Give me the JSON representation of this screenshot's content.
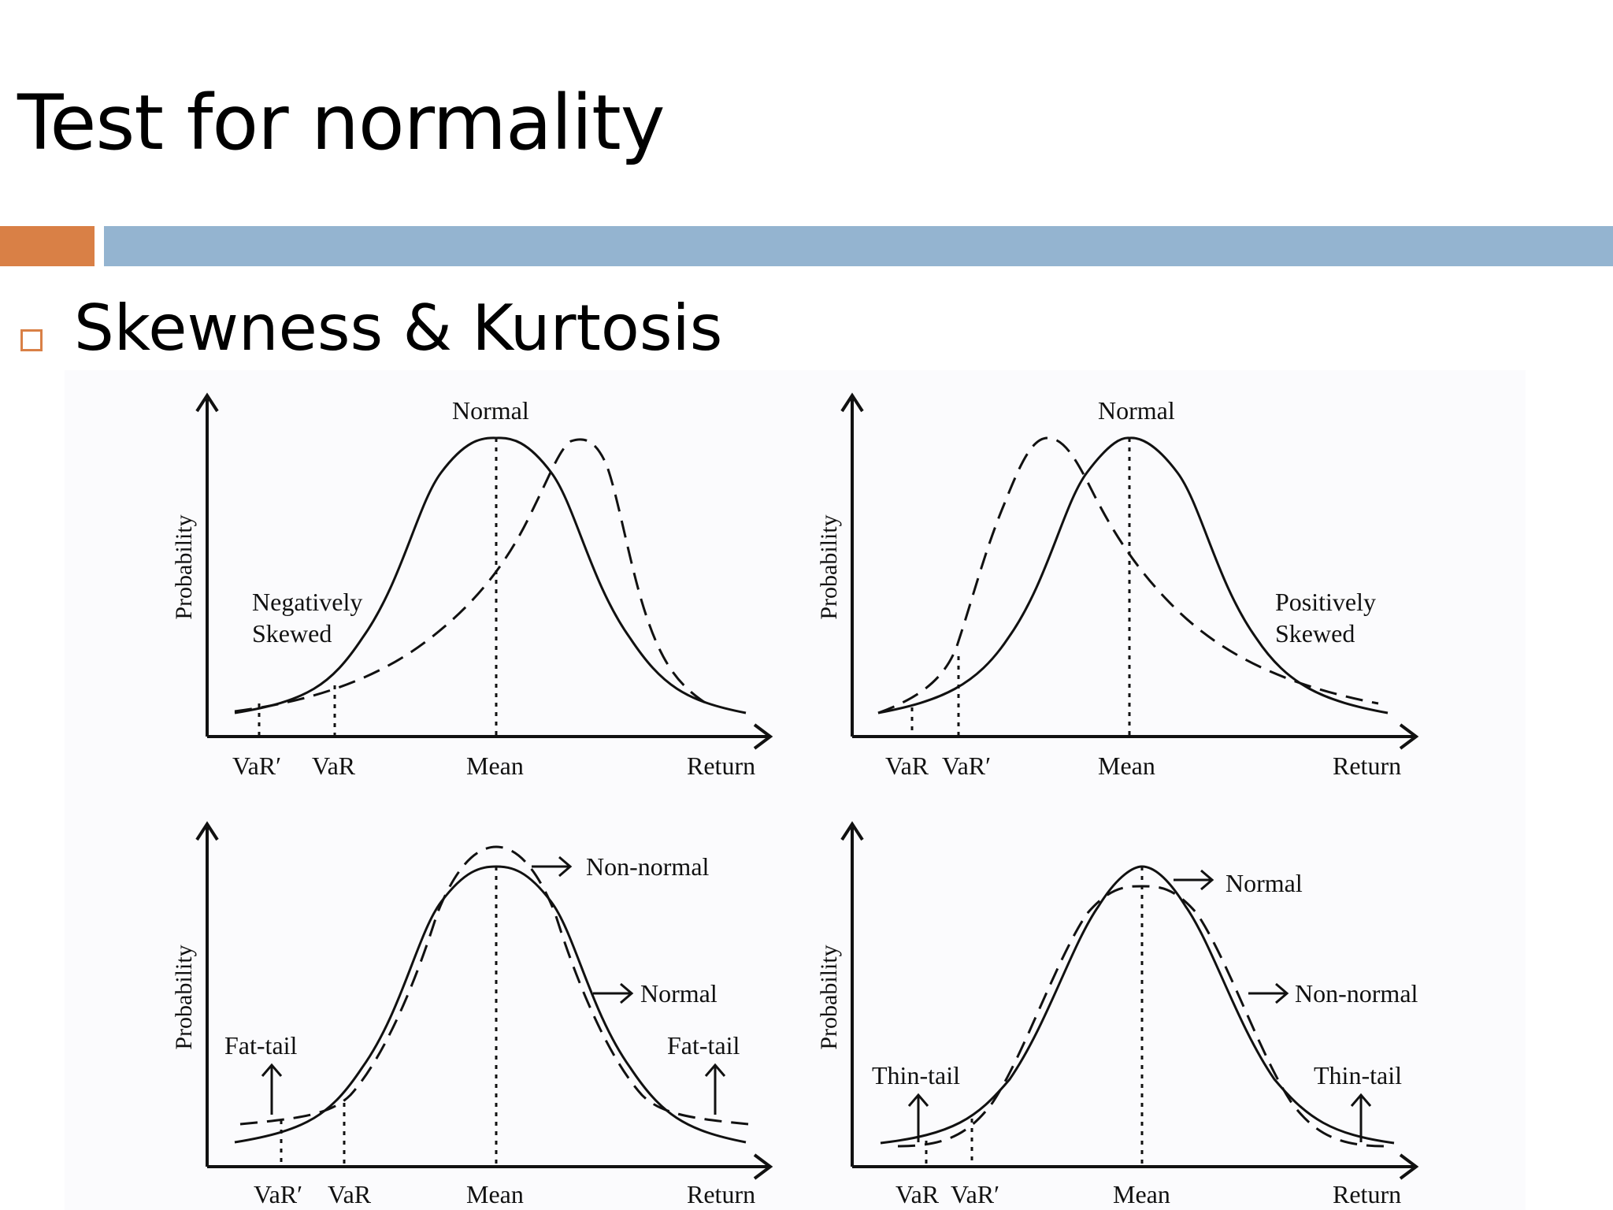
{
  "slide": {
    "title": "Test for normality",
    "bullet": "Skewness & Kurtosis",
    "colors": {
      "accent": "#D98046",
      "band": "#94B4D0",
      "bullet_box": "#D98046"
    }
  },
  "figure": {
    "panels": [
      {
        "id": "negative-skew",
        "ylabel": "Probability",
        "top_label": "Normal",
        "annotations": [
          "Negatively",
          "Skewed"
        ],
        "x_ticks": [
          "VaR′",
          "VaR",
          "Mean",
          "Return"
        ]
      },
      {
        "id": "positive-skew",
        "ylabel": "Probability",
        "top_label": "Normal",
        "annotations": [
          "Positively",
          "Skewed"
        ],
        "x_ticks": [
          "VaR",
          "VaR′",
          "Mean",
          "Return"
        ]
      },
      {
        "id": "fat-tail",
        "ylabel": "Probability",
        "curve_labels": [
          "Non-normal",
          "Normal"
        ],
        "tail_labels": [
          "Fat-tail",
          "Fat-tail"
        ],
        "x_ticks": [
          "VaR′",
          "VaR",
          "Mean",
          "Return"
        ]
      },
      {
        "id": "thin-tail",
        "ylabel": "Probability",
        "curve_labels": [
          "Normal",
          "Non-normal"
        ],
        "tail_labels": [
          "Thin-tail",
          "Thin-tail"
        ],
        "x_ticks": [
          "VaR",
          "VaR′",
          "Mean",
          "Return"
        ]
      }
    ]
  }
}
